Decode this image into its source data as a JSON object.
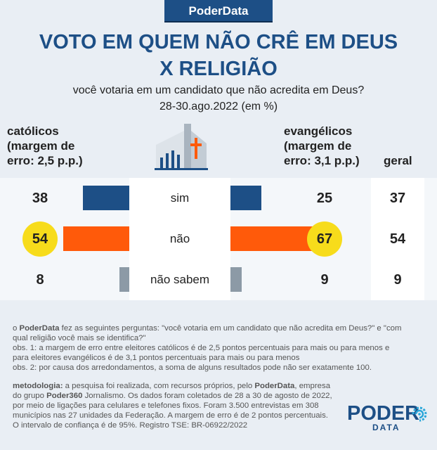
{
  "brand": "PoderData",
  "title_line1": "VOTO EM QUEM NÃO CRÊ EM DEUS",
  "title_line2": "X RELIGIÃO",
  "subtitle": "você votaria em um candidato que não acredita em Deus?",
  "date": "28-30.ago.2022 (em %)",
  "columns": {
    "catolicos": [
      "católicos",
      "(margem de",
      "erro: 2,5 p.p.)"
    ],
    "evangelicos": [
      "evangélicos",
      "(margem de",
      "erro: 3,1 p.p.)"
    ],
    "geral": "geral"
  },
  "chart_data": {
    "type": "bar",
    "categories": [
      "sim",
      "não",
      "não sabem"
    ],
    "series": [
      {
        "name": "católicos",
        "values": [
          38,
          54,
          8
        ]
      },
      {
        "name": "evangélicos",
        "values": [
          25,
          67,
          9
        ]
      },
      {
        "name": "geral",
        "values": [
          37,
          54,
          9
        ]
      }
    ],
    "bar_colors": [
      "#1d4f86",
      "#ff5a0a",
      "#8c9aa6"
    ],
    "highlight_color": "#f7dc1b",
    "highlighted": {
      "católicos": "não",
      "evangélicos": "não"
    }
  },
  "notes": {
    "p1_pre": "o ",
    "p1_brand": "PoderData",
    "p1_post": " fez as seguintes perguntas:  \"você votaria em um candidato que não acredita em Deus?\" e \"com qual religião você mais se identifica?\"",
    "obs1": "obs. 1: a margem de erro entre eleitores católicos é de 2,5 pontos percentuais para mais ou para menos e para eleitores evangélicos é de 3,1 pontos percentuais para mais ou para menos",
    "obs2": "obs. 2: por causa dos arredondamentos, a soma de alguns resultados pode não ser exatamente 100.",
    "met_label": "metodologia:",
    "met_a": " a pesquisa foi realizada, com recursos próprios, pelo ",
    "met_brand": "PoderData",
    "met_b": ", empresa do grupo ",
    "met_group": "Poder360",
    "met_c": " Jornalismo. Os dados foram coletados de 28 a 30 de agosto de 2022, por meio de ligações para celulares e telefones fixos. Foram 3.500 entrevistas em 308 municípios nas 27 unidades da Federação. A margem de erro é de 2 pontos percentuais. O intervalo de confiança é de 95%. Registro TSE: BR-06922/2022"
  },
  "logo": {
    "top": "PODER",
    "bottom": "DATA"
  }
}
